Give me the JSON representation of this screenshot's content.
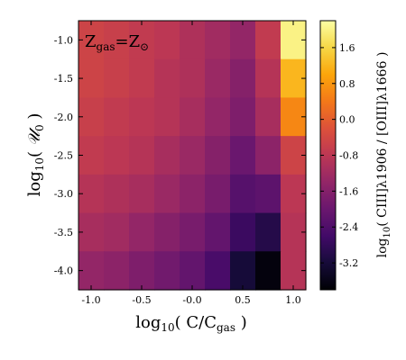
{
  "chart_data": {
    "type": "heatmap",
    "annotation": "Z_gas=Z_⊙",
    "annotation_text": "Zgas=Z⊙",
    "xlabel": "log10( C/Cgas )",
    "xlabel_main": "log",
    "xlabel_sub": "10",
    "xlabel_rest": "( C/C",
    "xlabel_rest_sub": "gas",
    "xlabel_close": " )",
    "ylabel": "log10( U0 )",
    "ylabel_main": "log",
    "ylabel_sub": "10",
    "ylabel_rest": "( ",
    "ylabel_var": "𝒰",
    "ylabel_var_sub": "0",
    "ylabel_close": " )",
    "colorbar_label": "log10( CIII]λ1906 / [OIII]λ1666 )",
    "colorbar_label_main": "log",
    "colorbar_label_sub": "10",
    "colorbar_label_rest": "( CIII]λ1906 / [OIII]λ1666 )",
    "x_tick_labels": [
      "-1.0",
      "-0.5",
      "-0.0",
      "0.5",
      "1.0"
    ],
    "x_tick_values": [
      -1.0,
      -0.5,
      0.0,
      0.5,
      1.0
    ],
    "y_tick_labels": [
      "-1.0",
      "-1.5",
      "-2.0",
      "-2.5",
      "-3.0",
      "-3.5",
      "-4.0"
    ],
    "y_tick_values": [
      -1.0,
      -1.5,
      -2.0,
      -2.5,
      -3.0,
      -3.5,
      -4.0
    ],
    "colorbar_tick_labels": [
      "1.6",
      "0.8",
      "0.0",
      "-0.8",
      "-1.6",
      "-2.4",
      "-3.2"
    ],
    "colorbar_tick_values": [
      1.6,
      0.8,
      0.0,
      -0.8,
      -1.6,
      -2.4,
      -3.2
    ],
    "colorbar_range": [
      -3.8,
      2.2
    ],
    "colormap": "inferno",
    "xlim": [
      -1.125,
      1.125
    ],
    "ylim": [
      -4.25,
      -0.75
    ],
    "x": [
      -1.0,
      -0.75,
      -0.5,
      -0.25,
      0.0,
      0.25,
      0.5,
      0.75,
      1.0
    ],
    "y": [
      -1.0,
      -1.5,
      -2.0,
      -2.5,
      -3.0,
      -3.5,
      -4.0
    ],
    "z": [
      [
        -0.5,
        -0.6,
        -0.7,
        -0.8,
        -1.0,
        -1.2,
        -1.4,
        -0.7,
        2.0
      ],
      [
        -0.5,
        -0.6,
        -0.7,
        -0.9,
        -1.0,
        -1.3,
        -1.6,
        -0.9,
        1.2
      ],
      [
        -0.6,
        -0.7,
        -0.8,
        -0.9,
        -1.1,
        -1.4,
        -1.7,
        -1.1,
        0.6
      ],
      [
        -0.7,
        -0.8,
        -0.9,
        -1.1,
        -1.3,
        -1.6,
        -2.0,
        -1.5,
        -0.5
      ],
      [
        -0.9,
        -1.0,
        -1.1,
        -1.3,
        -1.5,
        -1.8,
        -2.3,
        -2.2,
        -0.8
      ],
      [
        -1.1,
        -1.2,
        -1.4,
        -1.6,
        -1.8,
        -2.1,
        -2.7,
        -3.0,
        -0.9
      ],
      [
        -1.4,
        -1.5,
        -1.7,
        -1.9,
        -2.1,
        -2.5,
        -3.2,
        -3.7,
        -0.9
      ]
    ]
  }
}
